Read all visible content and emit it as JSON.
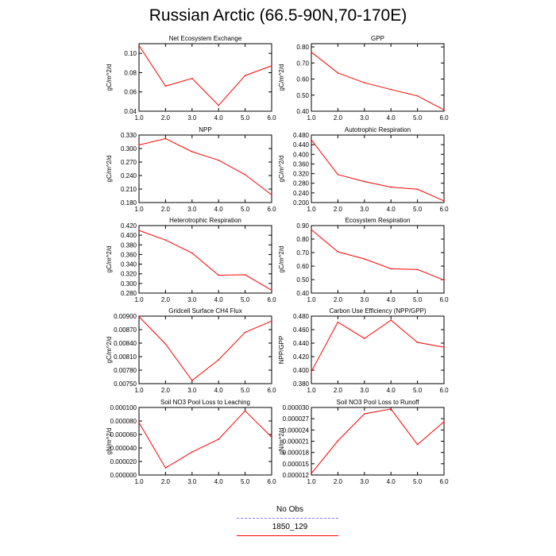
{
  "title": "Russian Arctic (66.5-90N,70-170E)",
  "series_color": "#ff0000",
  "obs_color": "#8080ff",
  "legend": {
    "obs_label": "No Obs",
    "model_label": "1850_129"
  },
  "chart_data": [
    {
      "type": "line",
      "title": "Net Ecosystem Exchange",
      "ylabel": "gC/m^2/d",
      "x": [
        1,
        2,
        3,
        4,
        5,
        6
      ],
      "xlim": [
        1,
        6
      ],
      "xticks": [
        "1.0",
        "2.0",
        "3.0",
        "4.0",
        "5.0",
        "6.0"
      ],
      "ylim": [
        0.04,
        0.11
      ],
      "yticks": [
        0.04,
        0.06,
        0.08,
        0.1
      ],
      "yticklabels": [
        "0.04",
        "0.06",
        "0.08",
        "0.10"
      ],
      "series": [
        {
          "name": "1850_129",
          "values": [
            0.108,
            0.066,
            0.074,
            0.046,
            0.077,
            0.087
          ]
        }
      ]
    },
    {
      "type": "line",
      "title": "GPP",
      "ylabel": "gC/m^2/d",
      "x": [
        1,
        2,
        3,
        4,
        5,
        6
      ],
      "xlim": [
        1,
        6
      ],
      "xticks": [
        "1.0",
        "2.0",
        "3.0",
        "4.0",
        "5.0",
        "6.0"
      ],
      "ylim": [
        0.4,
        0.82
      ],
      "yticks": [
        0.4,
        0.5,
        0.6,
        0.7,
        0.8
      ],
      "yticklabels": [
        "0.40",
        "0.50",
        "0.60",
        "0.70",
        "0.80"
      ],
      "series": [
        {
          "name": "1850_129",
          "values": [
            0.767,
            0.638,
            0.577,
            0.535,
            0.495,
            0.408
          ]
        }
      ]
    },
    {
      "type": "line",
      "title": "NPP",
      "ylabel": "gC/m^2/d",
      "x": [
        1,
        2,
        3,
        4,
        5,
        6
      ],
      "xlim": [
        1,
        6
      ],
      "xticks": [
        "1.0",
        "2.0",
        "3.0",
        "4.0",
        "5.0",
        "6.0"
      ],
      "ylim": [
        0.18,
        0.33
      ],
      "yticks": [
        0.18,
        0.21,
        0.24,
        0.27,
        0.3,
        0.33
      ],
      "yticklabels": [
        "0.180",
        "0.210",
        "0.240",
        "0.270",
        "0.300",
        "0.330"
      ],
      "series": [
        {
          "name": "1850_129",
          "values": [
            0.308,
            0.322,
            0.293,
            0.274,
            0.242,
            0.197
          ]
        }
      ]
    },
    {
      "type": "line",
      "title": "Autotrophic Respiration",
      "ylabel": "gC/m^2/d",
      "x": [
        1,
        2,
        3,
        4,
        5,
        6
      ],
      "xlim": [
        1,
        6
      ],
      "xticks": [
        "1.0",
        "2.0",
        "3.0",
        "4.0",
        "5.0",
        "6.0"
      ],
      "ylim": [
        0.2,
        0.48
      ],
      "yticks": [
        0.2,
        0.24,
        0.28,
        0.32,
        0.36,
        0.4,
        0.44,
        0.48
      ],
      "yticklabels": [
        "0.200",
        "0.240",
        "0.280",
        "0.320",
        "0.360",
        "0.400",
        "0.440",
        "0.480"
      ],
      "series": [
        {
          "name": "1850_129",
          "values": [
            0.46,
            0.316,
            0.287,
            0.264,
            0.255,
            0.207
          ]
        }
      ]
    },
    {
      "type": "line",
      "title": "Heterotrophic Respiration",
      "ylabel": "gC/m^2/d",
      "x": [
        1,
        2,
        3,
        4,
        5,
        6
      ],
      "xlim": [
        1,
        6
      ],
      "xticks": [
        "1.0",
        "2.0",
        "3.0",
        "4.0",
        "5.0",
        "6.0"
      ],
      "ylim": [
        0.28,
        0.42
      ],
      "yticks": [
        0.28,
        0.3,
        0.32,
        0.34,
        0.36,
        0.38,
        0.4,
        0.42
      ],
      "yticklabels": [
        "0.280",
        "0.300",
        "0.320",
        "0.340",
        "0.360",
        "0.380",
        "0.400",
        "0.420"
      ],
      "series": [
        {
          "name": "1850_129",
          "values": [
            0.41,
            0.39,
            0.363,
            0.317,
            0.318,
            0.286
          ]
        }
      ]
    },
    {
      "type": "line",
      "title": "Ecosystem Respiration",
      "ylabel": "gC/m^2/d",
      "x": [
        1,
        2,
        3,
        4,
        5,
        6
      ],
      "xlim": [
        1,
        6
      ],
      "xticks": [
        "1.0",
        "2.0",
        "3.0",
        "4.0",
        "5.0",
        "6.0"
      ],
      "ylim": [
        0.4,
        0.9
      ],
      "yticks": [
        0.4,
        0.5,
        0.6,
        0.7,
        0.8,
        0.9
      ],
      "yticklabels": [
        "0.40",
        "0.50",
        "0.60",
        "0.70",
        "0.80",
        "0.90"
      ],
      "series": [
        {
          "name": "1850_129",
          "values": [
            0.869,
            0.706,
            0.653,
            0.58,
            0.575,
            0.496
          ]
        }
      ]
    },
    {
      "type": "line",
      "title": "Gridcell Surface CH4 Flux",
      "ylabel": "gC/m^2/d",
      "x": [
        1,
        2,
        3,
        4,
        5,
        6
      ],
      "xlim": [
        1,
        6
      ],
      "xticks": [
        "1.0",
        "2.0",
        "3.0",
        "4.0",
        "5.0",
        "6.0"
      ],
      "ylim": [
        0.0075,
        0.009
      ],
      "yticks": [
        0.0075,
        0.0078,
        0.0081,
        0.0084,
        0.0087,
        0.009
      ],
      "yticklabels": [
        "0.00750",
        "0.00780",
        "0.00810",
        "0.00840",
        "0.00870",
        "0.00900"
      ],
      "series": [
        {
          "name": "1850_129",
          "values": [
            0.00899,
            0.00838,
            0.00757,
            0.00803,
            0.00864,
            0.00889
          ]
        }
      ]
    },
    {
      "type": "line",
      "title": "Carbon Use Efficiency (NPP/GPP)",
      "ylabel": "NPP/GPP",
      "x": [
        1,
        2,
        3,
        4,
        5,
        6
      ],
      "xlim": [
        1,
        6
      ],
      "xticks": [
        "1.0",
        "2.0",
        "3.0",
        "4.0",
        "5.0",
        "6.0"
      ],
      "ylim": [
        0.38,
        0.48
      ],
      "yticks": [
        0.38,
        0.4,
        0.42,
        0.44,
        0.46,
        0.48
      ],
      "yticklabels": [
        "0.380",
        "0.400",
        "0.420",
        "0.440",
        "0.460",
        "0.480"
      ],
      "series": [
        {
          "name": "1850_129",
          "values": [
            0.398,
            0.471,
            0.447,
            0.474,
            0.441,
            0.434
          ]
        }
      ]
    },
    {
      "type": "line",
      "title": "Soil NO3 Pool Loss to Leaching",
      "ylabel": "gN/m^2/d",
      "x": [
        1,
        2,
        3,
        4,
        5,
        6
      ],
      "xlim": [
        1,
        6
      ],
      "xticks": [
        "1.0",
        "2.0",
        "3.0",
        "4.0",
        "5.0",
        "6.0"
      ],
      "ylim": [
        0.0,
        0.0001
      ],
      "yticks": [
        0.0,
        2e-05,
        4e-05,
        6e-05,
        8e-05,
        0.0001
      ],
      "yticklabels": [
        "0.000000",
        "0.000020",
        "0.000040",
        "0.000060",
        "0.000080",
        "0.000100"
      ],
      "series": [
        {
          "name": "1850_129",
          "values": [
            7.75e-05,
            1.05e-05,
            3.4e-05,
            5.3e-05,
            9.5e-05,
            5.6e-05
          ]
        }
      ]
    },
    {
      "type": "line",
      "title": "Soil NO3 Pool Loss to Runoff",
      "ylabel": "gN/m^2/d",
      "x": [
        1,
        2,
        3,
        4,
        5,
        6
      ],
      "xlim": [
        1,
        6
      ],
      "xticks": [
        "1.0",
        "2.0",
        "3.0",
        "4.0",
        "5.0",
        "6.0"
      ],
      "ylim": [
        1.2e-05,
        3e-05
      ],
      "yticks": [
        1.2e-05,
        1.5e-05,
        1.8e-05,
        2.1e-05,
        2.4e-05,
        2.7e-05,
        3e-05
      ],
      "yticklabels": [
        "0.000012",
        "0.000015",
        "0.000018",
        "0.000021",
        "0.000024",
        "0.000027",
        "0.000030"
      ],
      "series": [
        {
          "name": "1850_129",
          "values": [
            1.24e-05,
            2.11e-05,
            2.83e-05,
            2.96e-05,
            2.01e-05,
            2.62e-05
          ]
        }
      ]
    }
  ]
}
